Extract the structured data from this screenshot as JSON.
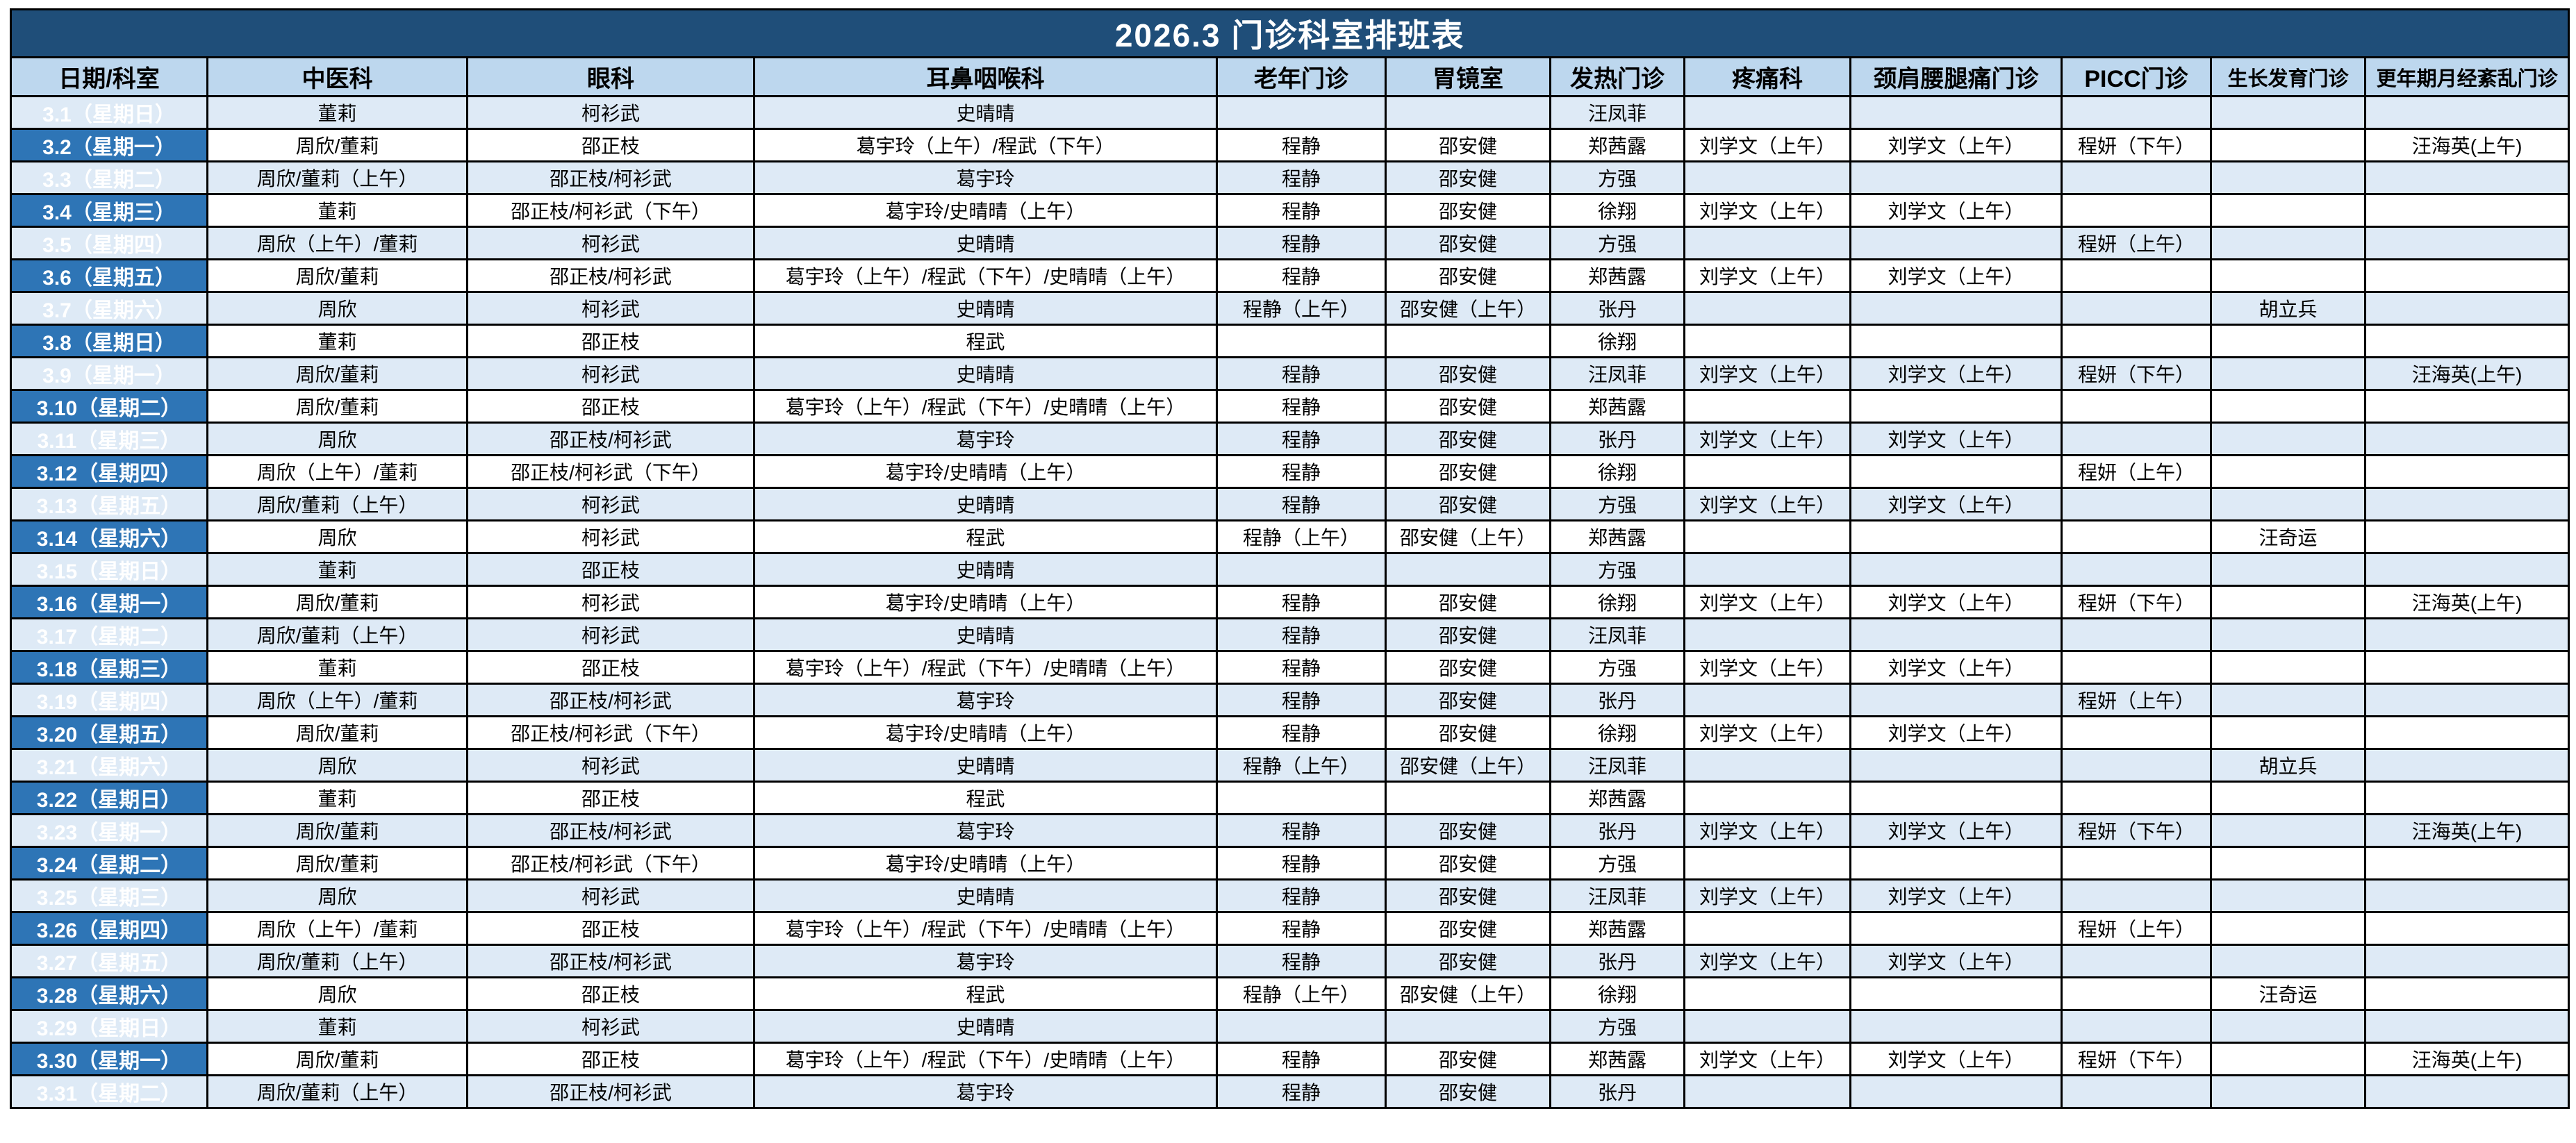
{
  "title": "2026.3 门诊科室排班表",
  "colors": {
    "title_bg": "#1F4E79",
    "header_bg": "#BDD7EE",
    "date_col_bg": "#2E75B6",
    "alt_row_bg": "#DEEAF6",
    "row_bg": "#FFFFFF",
    "grid": "#000000"
  },
  "columns": [
    "日期/科室",
    "中医科",
    "眼科",
    "耳鼻咽喉科",
    "老年门诊",
    "胃镜室",
    "发热门诊",
    "疼痛科",
    "颈肩腰腿痛门诊",
    "PICC门诊",
    "生长发育门诊",
    "更年期月经紊乱门诊"
  ],
  "rows": [
    {
      "date": "3.1（星期日）",
      "cells": [
        "董莉",
        "柯衫武",
        "史晴晴",
        "",
        "",
        "汪凤菲",
        "",
        "",
        "",
        "",
        ""
      ]
    },
    {
      "date": "3.2（星期一）",
      "cells": [
        "周欣/董莉",
        "邵正枝",
        "葛宇玲（上午）/程武（下午）",
        "程静",
        "邵安健",
        "郑茜露",
        "刘学文（上午）",
        "刘学文（上午）",
        "程妍（下午）",
        "",
        "汪海英(上午)"
      ]
    },
    {
      "date": "3.3（星期二）",
      "cells": [
        "周欣/董莉（上午）",
        "邵正枝/柯衫武",
        "葛宇玲",
        "程静",
        "邵安健",
        "方强",
        "",
        "",
        "",
        "",
        ""
      ]
    },
    {
      "date": "3.4（星期三）",
      "cells": [
        "董莉",
        "邵正枝/柯衫武（下午）",
        "葛宇玲/史晴晴（上午）",
        "程静",
        "邵安健",
        "徐翔",
        "刘学文（上午）",
        "刘学文（上午）",
        "",
        "",
        ""
      ]
    },
    {
      "date": "3.5（星期四）",
      "cells": [
        "周欣（上午）/董莉",
        "柯衫武",
        "史晴晴",
        "程静",
        "邵安健",
        "方强",
        "",
        "",
        "程妍（上午）",
        "",
        ""
      ]
    },
    {
      "date": "3.6（星期五）",
      "cells": [
        "周欣/董莉",
        "邵正枝/柯衫武",
        "葛宇玲（上午）/程武（下午）/史晴晴（上午）",
        "程静",
        "邵安健",
        "郑茜露",
        "刘学文（上午）",
        "刘学文（上午）",
        "",
        "",
        ""
      ]
    },
    {
      "date": "3.7（星期六）",
      "cells": [
        "周欣",
        "柯衫武",
        "史晴晴",
        "程静（上午）",
        "邵安健（上午）",
        "张丹",
        "",
        "",
        "",
        "胡立兵",
        ""
      ]
    },
    {
      "date": "3.8（星期日）",
      "cells": [
        "董莉",
        "邵正枝",
        "程武",
        "",
        "",
        "徐翔",
        "",
        "",
        "",
        "",
        ""
      ]
    },
    {
      "date": "3.9（星期一）",
      "cells": [
        "周欣/董莉",
        "柯衫武",
        "史晴晴",
        "程静",
        "邵安健",
        "汪凤菲",
        "刘学文（上午）",
        "刘学文（上午）",
        "程妍（下午）",
        "",
        "汪海英(上午)"
      ]
    },
    {
      "date": "3.10（星期二）",
      "cells": [
        "周欣/董莉",
        "邵正枝",
        "葛宇玲（上午）/程武（下午）/史晴晴（上午）",
        "程静",
        "邵安健",
        "郑茜露",
        "",
        "",
        "",
        "",
        ""
      ]
    },
    {
      "date": "3.11（星期三）",
      "cells": [
        "周欣",
        "邵正枝/柯衫武",
        "葛宇玲",
        "程静",
        "邵安健",
        "张丹",
        "刘学文（上午）",
        "刘学文（上午）",
        "",
        "",
        ""
      ]
    },
    {
      "date": "3.12（星期四）",
      "cells": [
        "周欣（上午）/董莉",
        "邵正枝/柯衫武（下午）",
        "葛宇玲/史晴晴（上午）",
        "程静",
        "邵安健",
        "徐翔",
        "",
        "",
        "程妍（上午）",
        "",
        ""
      ]
    },
    {
      "date": "3.13（星期五）",
      "cells": [
        "周欣/董莉（上午）",
        "柯衫武",
        "史晴晴",
        "程静",
        "邵安健",
        "方强",
        "刘学文（上午）",
        "刘学文（上午）",
        "",
        "",
        ""
      ]
    },
    {
      "date": "3.14（星期六）",
      "cells": [
        "周欣",
        "柯衫武",
        "程武",
        "程静（上午）",
        "邵安健（上午）",
        "郑茜露",
        "",
        "",
        "",
        "汪奇运",
        ""
      ]
    },
    {
      "date": "3.15（星期日）",
      "cells": [
        "董莉",
        "邵正枝",
        "史晴晴",
        "",
        "",
        "方强",
        "",
        "",
        "",
        "",
        ""
      ]
    },
    {
      "date": "3.16（星期一）",
      "cells": [
        "周欣/董莉",
        "柯衫武",
        "葛宇玲/史晴晴（上午）",
        "程静",
        "邵安健",
        "徐翔",
        "刘学文（上午）",
        "刘学文（上午）",
        "程妍（下午）",
        "",
        "汪海英(上午)"
      ]
    },
    {
      "date": "3.17（星期二）",
      "cells": [
        "周欣/董莉（上午）",
        "柯衫武",
        "史晴晴",
        "程静",
        "邵安健",
        "汪凤菲",
        "",
        "",
        "",
        "",
        ""
      ]
    },
    {
      "date": "3.18（星期三）",
      "cells": [
        "董莉",
        "邵正枝",
        "葛宇玲（上午）/程武（下午）/史晴晴（上午）",
        "程静",
        "邵安健",
        "方强",
        "刘学文（上午）",
        "刘学文（上午）",
        "",
        "",
        ""
      ]
    },
    {
      "date": "3.19（星期四）",
      "cells": [
        "周欣（上午）/董莉",
        "邵正枝/柯衫武",
        "葛宇玲",
        "程静",
        "邵安健",
        "张丹",
        "",
        "",
        "程妍（上午）",
        "",
        ""
      ]
    },
    {
      "date": "3.20（星期五）",
      "cells": [
        "周欣/董莉",
        "邵正枝/柯衫武（下午）",
        "葛宇玲/史晴晴（上午）",
        "程静",
        "邵安健",
        "徐翔",
        "刘学文（上午）",
        "刘学文（上午）",
        "",
        "",
        ""
      ]
    },
    {
      "date": "3.21（星期六）",
      "cells": [
        "周欣",
        "柯衫武",
        "史晴晴",
        "程静（上午）",
        "邵安健（上午）",
        "汪凤菲",
        "",
        "",
        "",
        "胡立兵",
        ""
      ]
    },
    {
      "date": "3.22（星期日）",
      "cells": [
        "董莉",
        "邵正枝",
        "程武",
        "",
        "",
        "郑茜露",
        "",
        "",
        "",
        "",
        ""
      ]
    },
    {
      "date": "3.23（星期一）",
      "cells": [
        "周欣/董莉",
        "邵正枝/柯衫武",
        "葛宇玲",
        "程静",
        "邵安健",
        "张丹",
        "刘学文（上午）",
        "刘学文（上午）",
        "程妍（下午）",
        "",
        "汪海英(上午)"
      ]
    },
    {
      "date": "3.24（星期二）",
      "cells": [
        "周欣/董莉",
        "邵正枝/柯衫武（下午）",
        "葛宇玲/史晴晴（上午）",
        "程静",
        "邵安健",
        "方强",
        "",
        "",
        "",
        "",
        ""
      ]
    },
    {
      "date": "3.25（星期三）",
      "cells": [
        "周欣",
        "柯衫武",
        "史晴晴",
        "程静",
        "邵安健",
        "汪凤菲",
        "刘学文（上午）",
        "刘学文（上午）",
        "",
        "",
        ""
      ]
    },
    {
      "date": "3.26（星期四）",
      "cells": [
        "周欣（上午）/董莉",
        "邵正枝",
        "葛宇玲（上午）/程武（下午）/史晴晴（上午）",
        "程静",
        "邵安健",
        "郑茜露",
        "",
        "",
        "程妍（上午）",
        "",
        ""
      ]
    },
    {
      "date": "3.27（星期五）",
      "cells": [
        "周欣/董莉（上午）",
        "邵正枝/柯衫武",
        "葛宇玲",
        "程静",
        "邵安健",
        "张丹",
        "刘学文（上午）",
        "刘学文（上午）",
        "",
        "",
        ""
      ]
    },
    {
      "date": "3.28（星期六）",
      "cells": [
        "周欣",
        "邵正枝",
        "程武",
        "程静（上午）",
        "邵安健（上午）",
        "徐翔",
        "",
        "",
        "",
        "汪奇运",
        ""
      ]
    },
    {
      "date": "3.29（星期日）",
      "cells": [
        "董莉",
        "柯衫武",
        "史晴晴",
        "",
        "",
        "方强",
        "",
        "",
        "",
        "",
        ""
      ]
    },
    {
      "date": "3.30（星期一）",
      "cells": [
        "周欣/董莉",
        "邵正枝",
        "葛宇玲（上午）/程武（下午）/史晴晴（上午）",
        "程静",
        "邵安健",
        "郑茜露",
        "刘学文（上午）",
        "刘学文（上午）",
        "程妍（下午）",
        "",
        "汪海英(上午)"
      ]
    },
    {
      "date": "3.31（星期二）",
      "cells": [
        "周欣/董莉（上午）",
        "邵正枝/柯衫武",
        "葛宇玲",
        "程静",
        "邵安健",
        "张丹",
        "",
        "",
        "",
        "",
        ""
      ]
    }
  ]
}
